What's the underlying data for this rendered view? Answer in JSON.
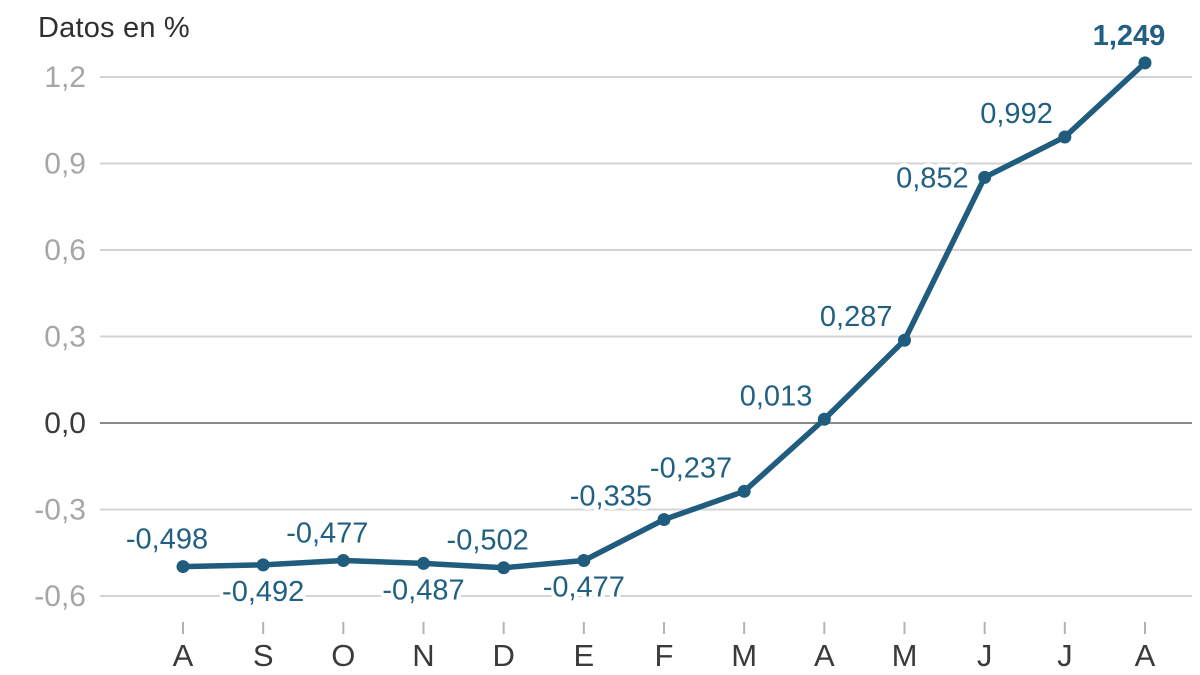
{
  "chart_data": {
    "type": "line",
    "title": "Datos en %",
    "categories": [
      "A",
      "S",
      "O",
      "N",
      "D",
      "E",
      "F",
      "M",
      "A",
      "M",
      "J",
      "J",
      "A"
    ],
    "values": [
      -0.498,
      -0.492,
      -0.477,
      -0.487,
      -0.502,
      -0.477,
      -0.335,
      -0.237,
      0.013,
      0.287,
      0.852,
      0.992,
      1.249
    ],
    "point_labels": [
      "-0,498",
      "-0,492",
      "-0,477",
      "-0,487",
      "-0,502",
      "-0,477",
      "-0,335",
      "-0,237",
      "0,013",
      "0,287",
      "0,852",
      "0,992",
      "1,249"
    ],
    "point_label_positions": [
      "above",
      "below",
      "above",
      "below",
      "above",
      "below",
      "upleft",
      "upleft",
      "upleft",
      "upleft",
      "left",
      "upleft",
      "above"
    ],
    "last_label_bold": true,
    "y_ticks": [
      {
        "value": 1.2,
        "label": "1,2"
      },
      {
        "value": 0.9,
        "label": "0,9"
      },
      {
        "value": 0.6,
        "label": "0,6"
      },
      {
        "value": 0.3,
        "label": "0,3"
      },
      {
        "value": 0.0,
        "label": "0,0"
      },
      {
        "value": -0.3,
        "label": "-0,3"
      },
      {
        "value": -0.6,
        "label": "-0,6"
      }
    ],
    "ylim": [
      -0.6,
      1.2
    ],
    "grid": true,
    "zero_line_emphasized": true,
    "legend": "none",
    "colors": {
      "line": "#1f5c7d",
      "point": "#1f5c7d",
      "value_label": "#216083",
      "grid": "#d4d4d4",
      "zero_grid": "#8a8a8a",
      "axis_text": "#a6a6a6",
      "month_text": "#3a3a3a",
      "title_text": "#2f2f2f"
    }
  }
}
